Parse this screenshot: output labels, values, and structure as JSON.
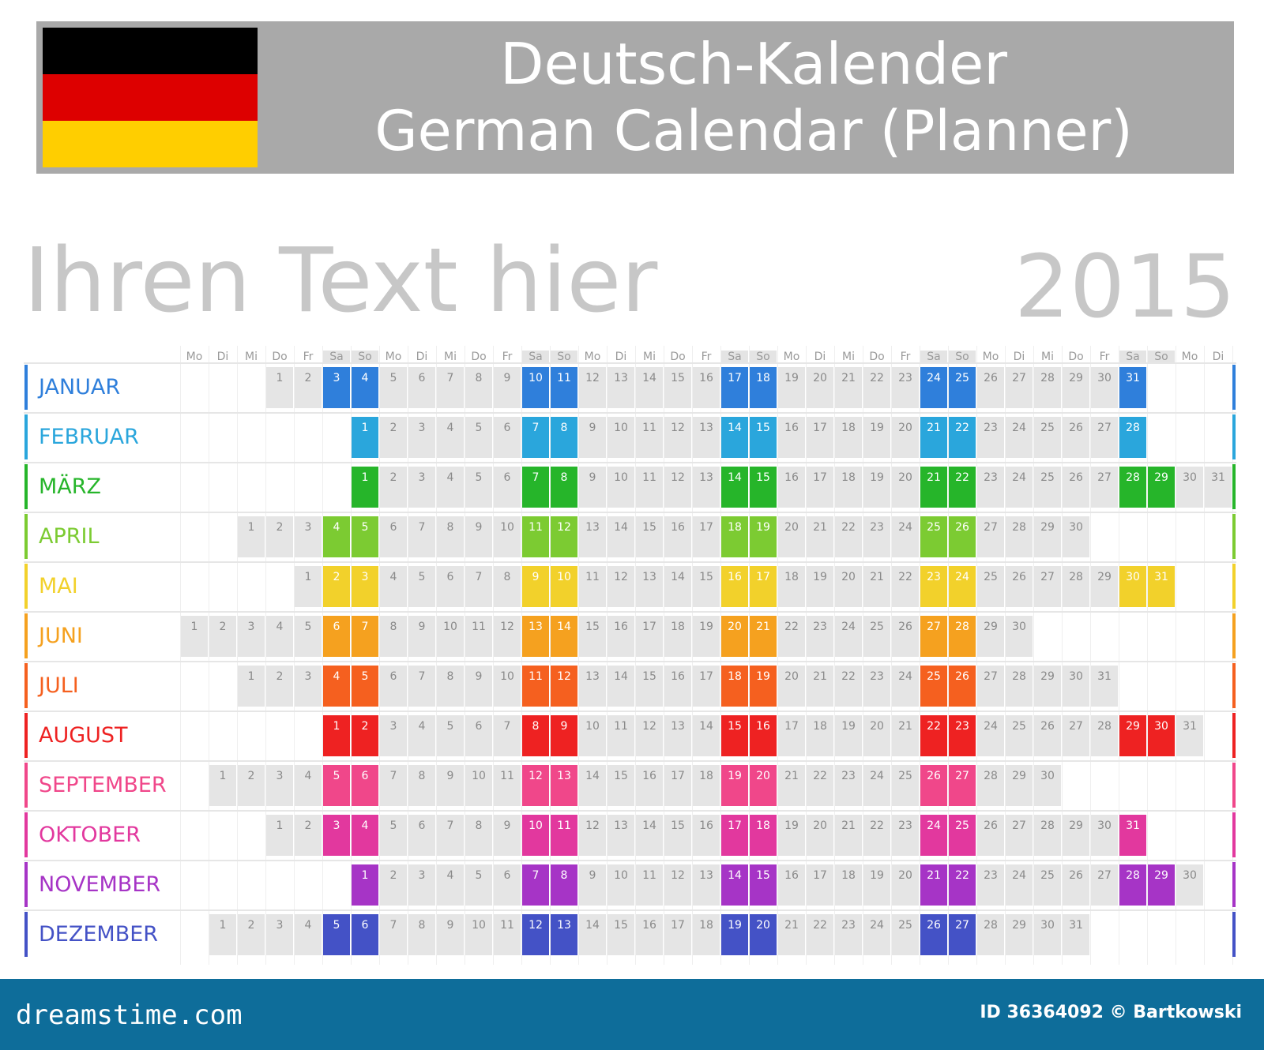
{
  "header": {
    "title_line1": "Deutsch-Kalender",
    "title_line2": "German Calendar (Planner)",
    "flag_colors": [
      "#000000",
      "#dd0000",
      "#ffce00"
    ]
  },
  "subtitle": "Ihren Text hier",
  "year": "2015",
  "weekdays": [
    "Mo",
    "Di",
    "Mi",
    "Do",
    "Fr",
    "Sa",
    "So",
    "Mo",
    "Di",
    "Mi",
    "Do",
    "Fr",
    "Sa",
    "So",
    "Mo",
    "Di",
    "Mi",
    "Do",
    "Fr",
    "Sa",
    "So",
    "Mo",
    "Di",
    "Mi",
    "Do",
    "Fr",
    "Sa",
    "So",
    "Mo",
    "Di",
    "Mi",
    "Do",
    "Fr",
    "Sa",
    "So",
    "Mo",
    "Di"
  ],
  "months": [
    {
      "name": "JANUAR",
      "offset": 3,
      "days": 31,
      "color": "#2f7fdb"
    },
    {
      "name": "FEBRUAR",
      "offset": 6,
      "days": 28,
      "color": "#2aa6dc"
    },
    {
      "name": "MÄRZ",
      "offset": 6,
      "days": 31,
      "color": "#26b52a"
    },
    {
      "name": "APRIL",
      "offset": 2,
      "days": 30,
      "color": "#7ccb32"
    },
    {
      "name": "MAI",
      "offset": 4,
      "days": 31,
      "color": "#f2d12b"
    },
    {
      "name": "JUNI",
      "offset": 0,
      "days": 30,
      "color": "#f5a11f"
    },
    {
      "name": "JULI",
      "offset": 2,
      "days": 31,
      "color": "#f5601f"
    },
    {
      "name": "AUGUST",
      "offset": 5,
      "days": 31,
      "color": "#ee2222"
    },
    {
      "name": "SEPTEMBER",
      "offset": 1,
      "days": 30,
      "color": "#f0478a"
    },
    {
      "name": "OKTOBER",
      "offset": 3,
      "days": 31,
      "color": "#e2389e"
    },
    {
      "name": "NOVEMBER",
      "offset": 6,
      "days": 30,
      "color": "#a634c6"
    },
    {
      "name": "DEZEMBER",
      "offset": 1,
      "days": 31,
      "color": "#4452c6"
    }
  ],
  "footer": {
    "brand": "dreamstime.com",
    "credit": "ID 36364092 © Bartkowski"
  }
}
